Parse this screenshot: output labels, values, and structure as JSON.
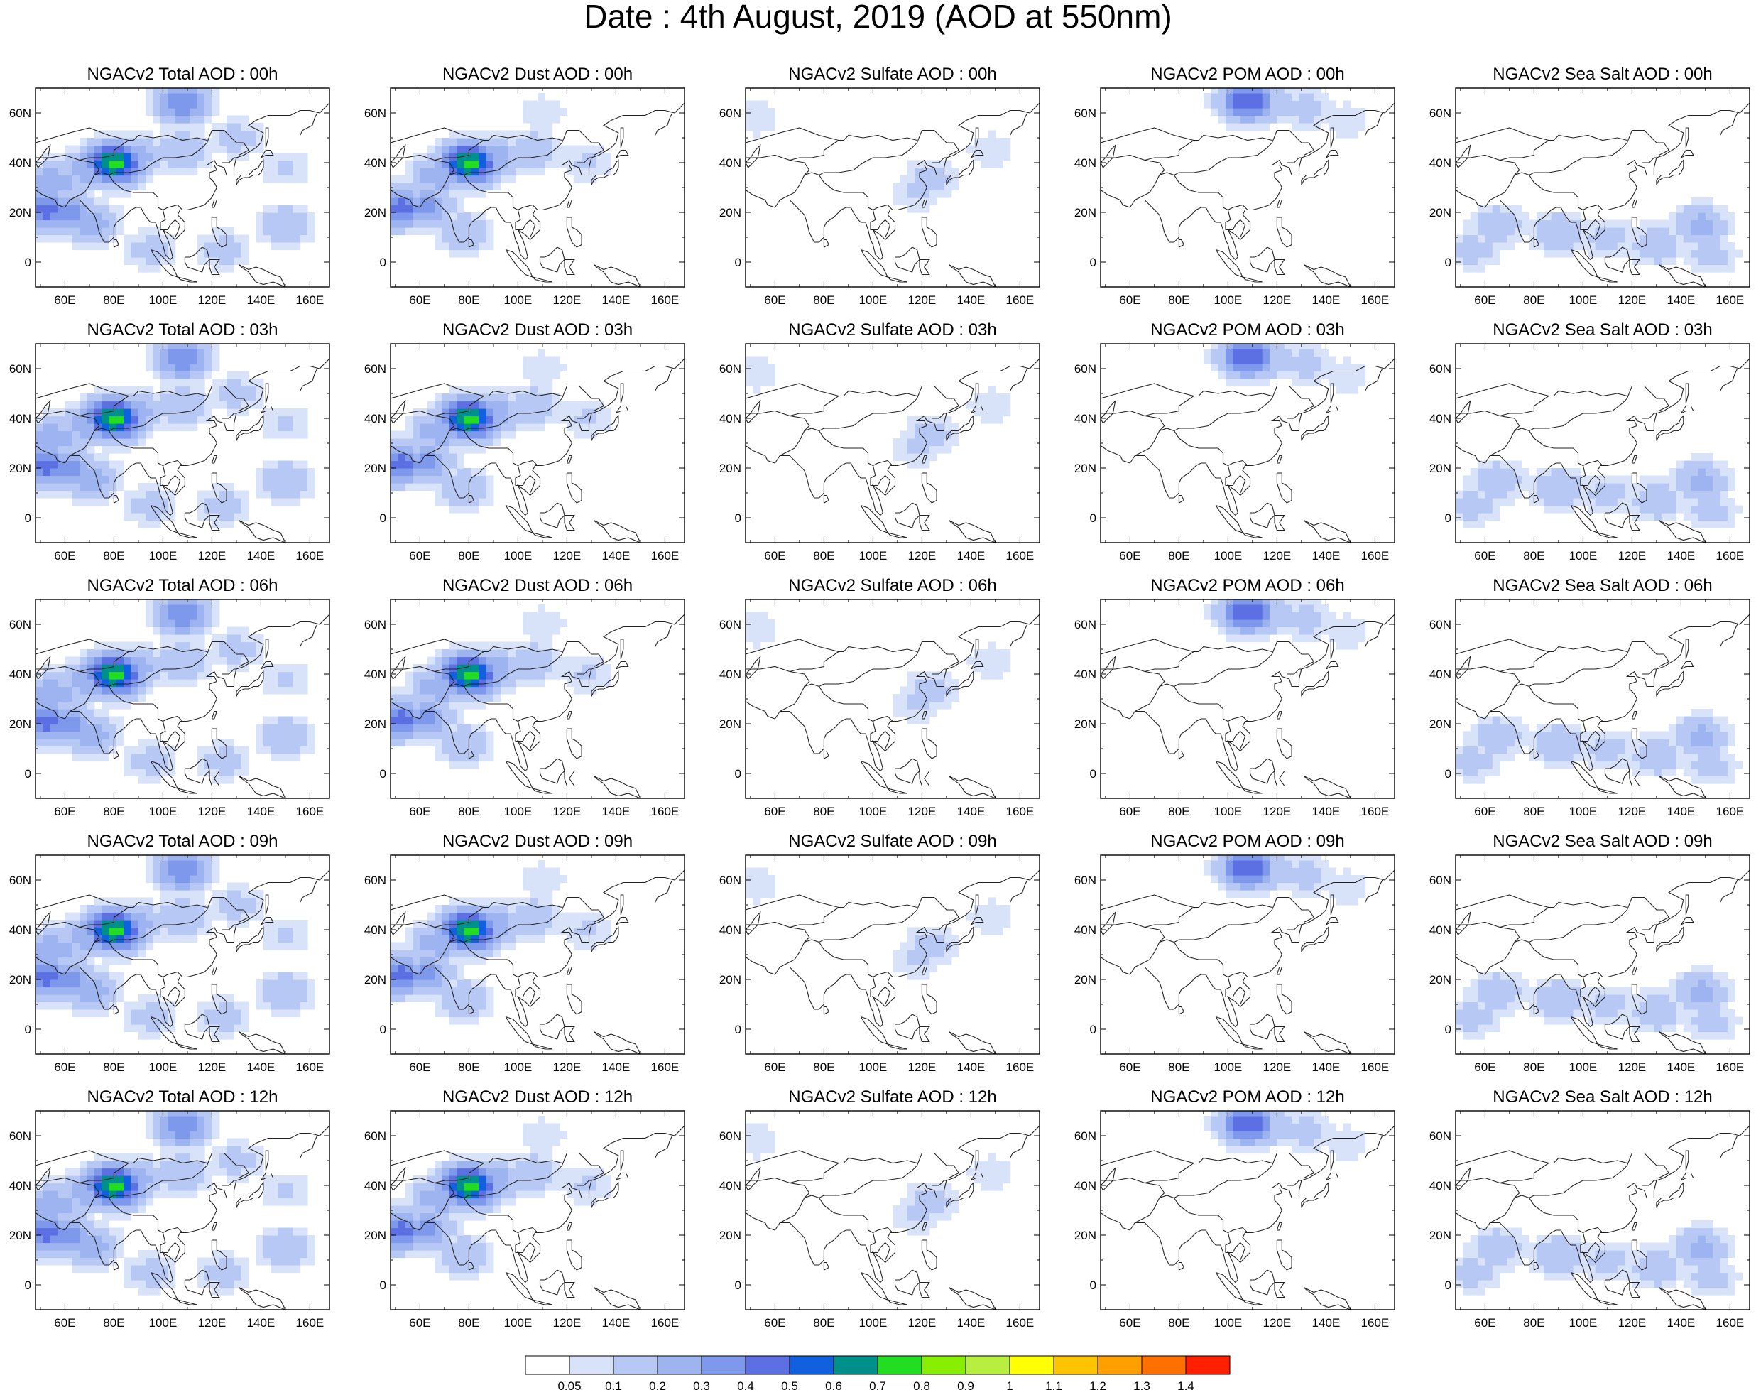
{
  "title": "Date : 4th August, 2019 (AOD at 550nm)",
  "chart_data": {
    "type": "heatmap",
    "title": "Date : 4th August, 2019 (AOD at 550nm)",
    "xticks": [
      "60E",
      "80E",
      "100E",
      "120E",
      "140E",
      "160E"
    ],
    "yticks": [
      "60N",
      "40N",
      "20N",
      "0"
    ],
    "xlim": [
      48,
      168
    ],
    "ylim": [
      -10,
      70
    ],
    "colorbar": {
      "labels": [
        "0.05",
        "0.1",
        "0.2",
        "0.3",
        "0.4",
        "0.5",
        "0.6",
        "0.7",
        "0.8",
        "0.9",
        "1",
        "1.1",
        "1.2",
        "1.3",
        "1.4"
      ],
      "colors": [
        "#ffffff",
        "#d8e2f8",
        "#b8c8f5",
        "#9db4f0",
        "#7e98ec",
        "#5c70e4",
        "#1060e0",
        "#00908c",
        "#22dd22",
        "#88ee00",
        "#b8ee40",
        "#ffff00",
        "#ffc400",
        "#ff9f00",
        "#ff7000",
        "#ff2000"
      ]
    },
    "panels": [
      {
        "title": "NGACv2 Total AOD : 00h",
        "species": "total",
        "hour": "00h"
      },
      {
        "title": "NGACv2 Dust AOD : 00h",
        "species": "dust",
        "hour": "00h"
      },
      {
        "title": "NGACv2 Sulfate AOD : 00h",
        "species": "sulfate",
        "hour": "00h"
      },
      {
        "title": "NGACv2 POM AOD : 00h",
        "species": "pom",
        "hour": "00h"
      },
      {
        "title": "NGACv2 Sea Salt AOD : 00h",
        "species": "seasalt",
        "hour": "00h"
      },
      {
        "title": "NGACv2 Total AOD : 03h",
        "species": "total",
        "hour": "03h"
      },
      {
        "title": "NGACv2 Dust AOD : 03h",
        "species": "dust",
        "hour": "03h"
      },
      {
        "title": "NGACv2 Sulfate AOD : 03h",
        "species": "sulfate",
        "hour": "03h"
      },
      {
        "title": "NGACv2 POM AOD : 03h",
        "species": "pom",
        "hour": "03h"
      },
      {
        "title": "NGACv2 Sea Salt AOD : 03h",
        "species": "seasalt",
        "hour": "03h"
      },
      {
        "title": "NGACv2 Total AOD : 06h",
        "species": "total",
        "hour": "06h"
      },
      {
        "title": "NGACv2 Dust AOD : 06h",
        "species": "dust",
        "hour": "06h"
      },
      {
        "title": "NGACv2 Sulfate AOD : 06h",
        "species": "sulfate",
        "hour": "06h"
      },
      {
        "title": "NGACv2 POM AOD : 06h",
        "species": "pom",
        "hour": "06h"
      },
      {
        "title": "NGACv2 Sea Salt AOD : 06h",
        "species": "seasalt",
        "hour": "06h"
      },
      {
        "title": "NGACv2 Total AOD : 09h",
        "species": "total",
        "hour": "09h"
      },
      {
        "title": "NGACv2 Dust AOD : 09h",
        "species": "dust",
        "hour": "09h"
      },
      {
        "title": "NGACv2 Sulfate AOD : 09h",
        "species": "sulfate",
        "hour": "09h"
      },
      {
        "title": "NGACv2 POM AOD : 09h",
        "species": "pom",
        "hour": "09h"
      },
      {
        "title": "NGACv2 Sea Salt  AOD : 09h",
        "species": "seasalt",
        "hour": "09h"
      },
      {
        "title": "NGACv2 Total AOD  : 12h",
        "species": "total",
        "hour": "12h"
      },
      {
        "title": "NGACv2 Dust AOD : 12h",
        "species": "dust",
        "hour": "12h"
      },
      {
        "title": "NGACv2 Sulfate AOD : 12h",
        "species": "sulfate",
        "hour": "12h"
      },
      {
        "title": "NGACv2 POM  AOD : 12h",
        "species": "pom",
        "hour": "12h"
      },
      {
        "title": "NGACv2 Sea Salt  AOD : 12h",
        "species": "seasalt",
        "hour": "12h"
      }
    ],
    "aod_fields": {
      "total": [
        {
          "lon": 52,
          "lat": 21,
          "value": 0.45
        },
        {
          "lon": 60,
          "lat": 20,
          "value": 0.4
        },
        {
          "lon": 70,
          "lat": 16,
          "value": 0.3
        },
        {
          "lon": 55,
          "lat": 32,
          "value": 0.3
        },
        {
          "lon": 70,
          "lat": 38,
          "value": 0.3
        },
        {
          "lon": 80,
          "lat": 40,
          "value": 0.75
        },
        {
          "lon": 88,
          "lat": 42,
          "value": 0.3
        },
        {
          "lon": 108,
          "lat": 64,
          "value": 0.4
        },
        {
          "lon": 108,
          "lat": 45,
          "value": 0.2
        },
        {
          "lon": 130,
          "lat": 50,
          "value": 0.15
        },
        {
          "lon": 150,
          "lat": 15,
          "value": 0.2
        },
        {
          "lon": 125,
          "lat": 5,
          "value": 0.15
        },
        {
          "lon": 95,
          "lat": 5,
          "value": 0.15
        },
        {
          "lon": 150,
          "lat": 38,
          "value": 0.12
        }
      ],
      "dust": [
        {
          "lon": 52,
          "lat": 22,
          "value": 0.45
        },
        {
          "lon": 62,
          "lat": 22,
          "value": 0.35
        },
        {
          "lon": 68,
          "lat": 35,
          "value": 0.3
        },
        {
          "lon": 80,
          "lat": 40,
          "value": 0.75
        },
        {
          "lon": 90,
          "lat": 42,
          "value": 0.3
        },
        {
          "lon": 106,
          "lat": 45,
          "value": 0.2
        },
        {
          "lon": 128,
          "lat": 40,
          "value": 0.12
        },
        {
          "lon": 110,
          "lat": 60,
          "value": 0.1
        },
        {
          "lon": 78,
          "lat": 12,
          "value": 0.2
        }
      ],
      "sulfate": [
        {
          "lon": 124,
          "lat": 34,
          "value": 0.15
        },
        {
          "lon": 118,
          "lat": 28,
          "value": 0.12
        },
        {
          "lon": 52,
          "lat": 58,
          "value": 0.1
        },
        {
          "lon": 148,
          "lat": 45,
          "value": 0.1
        }
      ],
      "pom": [
        {
          "lon": 108,
          "lat": 65,
          "value": 0.5
        },
        {
          "lon": 118,
          "lat": 64,
          "value": 0.2
        },
        {
          "lon": 132,
          "lat": 62,
          "value": 0.15
        },
        {
          "lon": 148,
          "lat": 57,
          "value": 0.1
        }
      ],
      "seasalt": [
        {
          "lon": 148,
          "lat": 15,
          "value": 0.25
        },
        {
          "lon": 130,
          "lat": 7,
          "value": 0.2
        },
        {
          "lon": 65,
          "lat": 15,
          "value": 0.2
        },
        {
          "lon": 90,
          "lat": 12,
          "value": 0.2
        },
        {
          "lon": 110,
          "lat": 10,
          "value": 0.15
        },
        {
          "lon": 55,
          "lat": 5,
          "value": 0.15
        },
        {
          "lon": 152,
          "lat": 3,
          "value": 0.15
        }
      ]
    }
  }
}
